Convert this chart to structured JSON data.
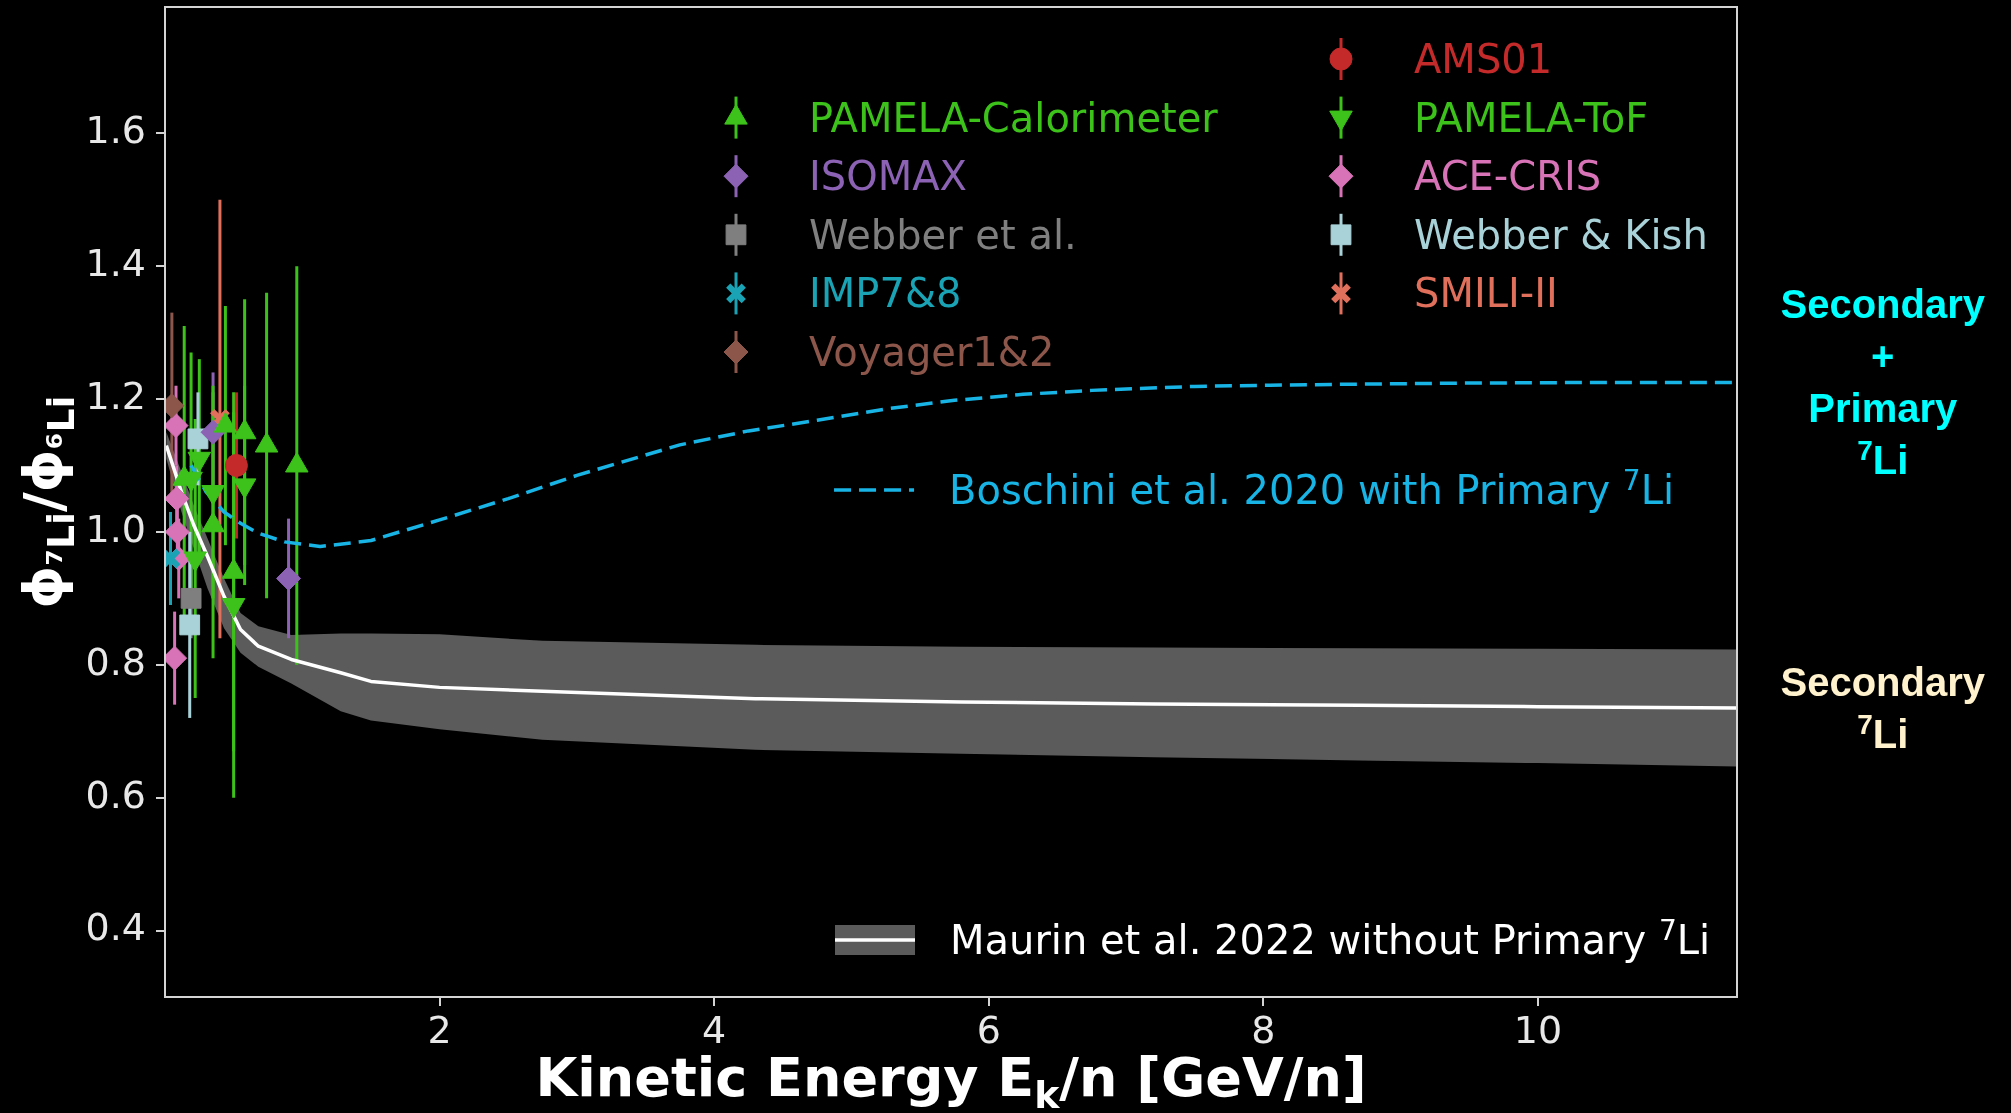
{
  "chart_data": {
    "type": "scatter",
    "xlabel": "Kinetic Energy E$_{k}$/n [GeV/n]",
    "ylabel": "ϕ$_{⁷Li}$/ϕ$_{⁶Li}$",
    "xlim": [
      0,
      11.45
    ],
    "ylim": [
      0.3,
      1.79
    ],
    "xticks": [
      2,
      4,
      6,
      8,
      10
    ],
    "yticks": [
      0.4,
      0.6,
      0.8,
      {
        "value": 1,
        "label": "1.0"
      },
      1.2,
      1.4,
      1.6
    ],
    "legend": "top right",
    "series": [
      {
        "name": "PAMELA-Calorimeter",
        "marker": "triangle",
        "color": "#3cc21a",
        "x": [
          0.14,
          0.35,
          0.44,
          0.5,
          0.58,
          0.74,
          0.96
        ],
        "values": [
          1.08,
          1.01,
          1.16,
          0.94,
          1.15,
          1.13,
          1.1
        ],
        "errors": [
          0.23,
          0.2,
          0.18,
          0.27,
          0.2,
          0.23,
          0.3
        ]
      },
      {
        "name": "ISOMAX",
        "marker": "diamond",
        "color": "#8c62b4",
        "x": [
          0.35,
          0.9
        ],
        "values": [
          1.15,
          0.93
        ],
        "errors": [
          0.09,
          0.09
        ]
      },
      {
        "name": "Webber et al.",
        "marker": "square",
        "color": "#7f7f7f",
        "x": [
          0.19
        ],
        "values": [
          0.9
        ],
        "errors": [
          0.06
        ]
      },
      {
        "name": "IMP7&8",
        "marker": "cross",
        "color": "#1aa3b5",
        "x": [
          0.04
        ],
        "values": [
          0.96
        ],
        "errors": [
          0.07
        ]
      },
      {
        "name": "Voyager1&2",
        "marker": "diamond",
        "color": "#8c564b",
        "x": [
          0.05
        ],
        "values": [
          1.19
        ],
        "errors": [
          0.14
        ]
      },
      {
        "name": "AMS01",
        "marker": "circle",
        "color": "#c42a2a",
        "x": [
          0.52
        ],
        "values": [
          1.1
        ],
        "errors": [
          0.11
        ]
      },
      {
        "name": "PAMELA-ToF",
        "marker": "triangle-down",
        "color": "#3cc21a",
        "x": [
          0.19,
          0.22,
          0.25,
          0.35,
          0.5,
          0.58
        ],
        "values": [
          1.08,
          0.96,
          1.11,
          1.06,
          0.89,
          1.07
        ],
        "errors": [
          0.19,
          0.21,
          0.15,
          0.16,
          0.29,
          0.15
        ]
      },
      {
        "name": "ACE-CRIS",
        "marker": "diamond",
        "color": "#d973b8",
        "x": [
          0.07,
          0.08,
          0.085,
          0.09,
          0.1
        ],
        "values": [
          0.81,
          1.16,
          1.05,
          1,
          0.96
        ],
        "errors": [
          0.07,
          0.06,
          0.05,
          0.05,
          0.06
        ]
      },
      {
        "name": "Webber & Kish",
        "marker": "square",
        "color": "#a9d2d8",
        "x": [
          0.18,
          0.24
        ],
        "values": [
          0.86,
          1.14
        ],
        "errors": [
          0.14,
          0.07
        ]
      },
      {
        "name": "SMILI-II",
        "marker": "cross",
        "color": "#e0705c",
        "x": [
          0.4
        ],
        "values": [
          1.17
        ],
        "errors": [
          0.33
        ]
      },
      {
        "name": "Boschini et al. 2020 with Primary $^{7}$Li",
        "type": "line",
        "line_style": "dashed",
        "marker": "none",
        "color": "#19b4e6",
        "x": [
          0.19,
          0.3,
          0.43,
          0.55,
          0.68,
          0.87,
          1.13,
          1.5,
          2,
          2.5,
          3,
          3.75,
          4.25,
          4.75,
          5.25,
          5.75,
          6.25,
          6.75,
          7.5,
          8.5,
          9.5,
          10.5,
          11.45
        ],
        "values": [
          1.1,
          1.06,
          1.03,
          1.013,
          0.998,
          0.985,
          0.978,
          0.987,
          1.018,
          1.05,
          1.085,
          1.131,
          1.152,
          1.168,
          1.185,
          1.198,
          1.207,
          1.213,
          1.219,
          1.222,
          1.224,
          1.225,
          1.225
        ]
      },
      {
        "name": "Maurin et al. 2022 without Primary $^{7}$Li",
        "type": "line",
        "line_style": "solid",
        "marker": "none",
        "color": "#ffffff",
        "x": [
          0.01,
          0.12,
          0.21,
          0.31,
          0.43,
          0.55,
          0.68,
          0.92,
          1.28,
          1.5,
          2,
          2.75,
          4.3,
          5.8,
          7.2,
          8.7,
          10,
          11.45
        ],
        "values": [
          1.13,
          1.06,
          1.01,
          0.963,
          0.903,
          0.853,
          0.828,
          0.808,
          0.788,
          0.775,
          0.766,
          0.76,
          0.749,
          0.744,
          0.741,
          0.739,
          0.737,
          0.735
        ],
        "lower": [
          1.11,
          1.03,
          0.975,
          0.915,
          0.855,
          0.818,
          0.797,
          0.772,
          0.73,
          0.716,
          0.703,
          0.687,
          0.672,
          0.666,
          0.661,
          0.656,
          0.652,
          0.647
        ],
        "upper": [
          1.15,
          1.09,
          1.04,
          0.99,
          0.93,
          0.878,
          0.858,
          0.845,
          0.847,
          0.847,
          0.846,
          0.836,
          0.83,
          0.827,
          0.826,
          0.825,
          0.824,
          0.823
        ]
      }
    ],
    "annotations": [
      {
        "text": "Secondary\n+\nPrimary\n$^{7}$Li",
        "x": 11.45,
        "y": 1.225
      },
      {
        "text": "Secondary\n$^{7}$Li",
        "x": 11.45,
        "y": 0.735
      }
    ]
  }
}
